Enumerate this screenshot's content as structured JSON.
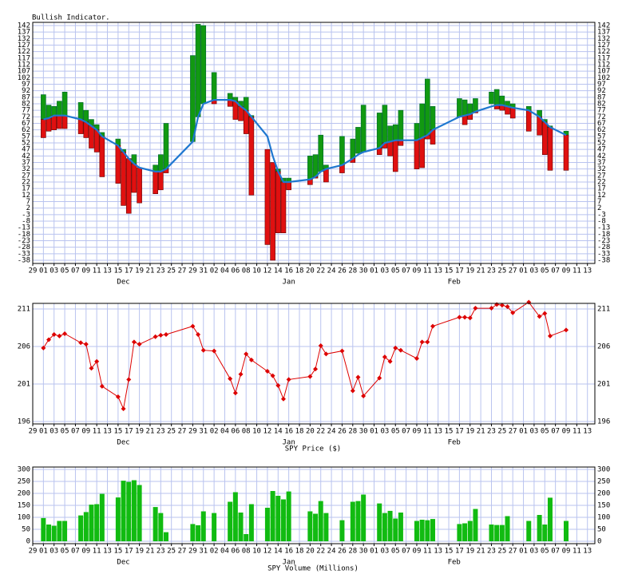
{
  "chart_data": [
    {
      "type": "range-bar",
      "title": "Bullish Indicator.",
      "x": [
        "Dec 01",
        "Dec 02",
        "Dec 03",
        "Dec 04",
        "Dec 05",
        "Dec 08",
        "Dec 09",
        "Dec 10",
        "Dec 11",
        "Dec 12",
        "Dec 15",
        "Dec 16",
        "Dec 17",
        "Dec 18",
        "Dec 19",
        "Dec 22",
        "Dec 23",
        "Dec 24",
        "Dec 29",
        "Dec 30",
        "Dec 31",
        "Jan 02",
        "Jan 05",
        "Jan 06",
        "Jan 07",
        "Jan 08",
        "Jan 09",
        "Jan 12",
        "Jan 13",
        "Jan 14",
        "Jan 15",
        "Jan 16",
        "Jan 20",
        "Jan 21",
        "Jan 22",
        "Jan 23",
        "Jan 26",
        "Jan 28",
        "Jan 29",
        "Jan 30",
        "Feb 02",
        "Feb 03",
        "Feb 04",
        "Feb 05",
        "Feb 06",
        "Feb 09",
        "Feb 10",
        "Feb 11",
        "Feb 12",
        "Feb 17",
        "Feb 18",
        "Feb 19",
        "Feb 20",
        "Feb 23",
        "Feb 24",
        "Feb 25",
        "Feb 26",
        "Feb 27",
        "Mar 02",
        "Mar 04",
        "Mar 05",
        "Mar 06",
        "Mar 09"
      ],
      "high": [
        89,
        81,
        80,
        84,
        91,
        83,
        77,
        70,
        66,
        60,
        55,
        47,
        40,
        43,
        33,
        35,
        43,
        67,
        119,
        143,
        142,
        106,
        90,
        87,
        84,
        87,
        73,
        47,
        37,
        32,
        25,
        25,
        42,
        43,
        58,
        35,
        57,
        55,
        64,
        81,
        75,
        81,
        65,
        66,
        77,
        67,
        82,
        101,
        80,
        86,
        85,
        82,
        86,
        91,
        93,
        88,
        84,
        82,
        80,
        77,
        70,
        65,
        61
      ],
      "low": [
        56,
        61,
        62,
        63,
        63,
        59,
        56,
        48,
        45,
        26,
        21,
        4,
        -2,
        14,
        6,
        13,
        16,
        29,
        53,
        72,
        82,
        82,
        80,
        70,
        69,
        59,
        12,
        -26,
        -38,
        -17,
        -17,
        16,
        20,
        25,
        30,
        22,
        29,
        37,
        44,
        45,
        43,
        48,
        42,
        30,
        50,
        32,
        33,
        55,
        51,
        72,
        66,
        70,
        75,
        82,
        78,
        77,
        74,
        71,
        61,
        58,
        43,
        31,
        31
      ],
      "line": [
        70,
        71,
        73,
        73,
        73,
        70,
        68,
        65,
        62,
        57,
        50,
        45,
        40,
        36,
        33,
        30,
        30,
        32,
        53,
        72,
        82,
        85,
        85,
        84,
        80,
        77,
        72,
        57,
        42,
        30,
        22,
        22,
        24,
        26,
        30,
        32,
        35,
        40,
        43,
        45,
        48,
        52,
        53,
        54,
        54,
        54,
        56,
        58,
        62,
        72,
        73,
        74,
        76,
        80,
        81,
        81,
        80,
        79,
        77,
        72,
        68,
        64,
        58
      ],
      "up_color": "#119911",
      "down_color": "#e01010",
      "line_color": "#1f78d0",
      "ylim": [
        -38,
        142
      ],
      "yticks": [
        142,
        137,
        132,
        127,
        122,
        117,
        112,
        107,
        102,
        97,
        92,
        87,
        82,
        77,
        72,
        67,
        62,
        57,
        52,
        47,
        42,
        37,
        32,
        27,
        22,
        17,
        12,
        7,
        2,
        -3,
        -8,
        -13,
        -18,
        -23,
        -28,
        -33,
        -38
      ],
      "xticks": [
        "29",
        "01",
        "03",
        "05",
        "07",
        "09",
        "11",
        "13",
        "15",
        "17",
        "19",
        "21",
        "23",
        "25",
        "27",
        "29",
        "31",
        "02",
        "04",
        "06",
        "08",
        "10",
        "12",
        "14",
        "16",
        "18",
        "20",
        "22",
        "24",
        "26",
        "28",
        "30",
        "01",
        "03",
        "05",
        "07",
        "09",
        "11",
        "13",
        "15",
        "17",
        "19",
        "21",
        "23",
        "25",
        "27",
        "01",
        "03",
        "05",
        "07",
        "09",
        "11",
        "13"
      ],
      "months": [
        "Dec",
        "Jan",
        "Feb"
      ],
      "grid": true
    },
    {
      "type": "line",
      "xlabel": "SPY Price ($)",
      "x": [
        "Dec 01",
        "Dec 02",
        "Dec 03",
        "Dec 04",
        "Dec 05",
        "Dec 08",
        "Dec 09",
        "Dec 10",
        "Dec 11",
        "Dec 12",
        "Dec 15",
        "Dec 16",
        "Dec 17",
        "Dec 18",
        "Dec 19",
        "Dec 22",
        "Dec 23",
        "Dec 24",
        "Dec 29",
        "Dec 30",
        "Dec 31",
        "Jan 02",
        "Jan 05",
        "Jan 06",
        "Jan 07",
        "Jan 08",
        "Jan 09",
        "Jan 12",
        "Jan 13",
        "Jan 14",
        "Jan 15",
        "Jan 16",
        "Jan 20",
        "Jan 21",
        "Jan 22",
        "Jan 23",
        "Jan 26",
        "Jan 28",
        "Jan 29",
        "Jan 30",
        "Feb 02",
        "Feb 03",
        "Feb 04",
        "Feb 05",
        "Feb 06",
        "Feb 09",
        "Feb 10",
        "Feb 11",
        "Feb 12",
        "Feb 17",
        "Feb 18",
        "Feb 19",
        "Feb 20",
        "Feb 23",
        "Feb 24",
        "Feb 25",
        "Feb 26",
        "Feb 27",
        "Mar 02",
        "Mar 04",
        "Mar 05",
        "Mar 06",
        "Mar 09"
      ],
      "values": [
        205.8,
        206.9,
        207.6,
        207.4,
        207.7,
        206.5,
        206.3,
        203.1,
        204.0,
        200.7,
        199.3,
        197.7,
        201.6,
        206.6,
        206.3,
        207.3,
        207.5,
        207.6,
        208.7,
        207.6,
        205.5,
        205.4,
        201.7,
        199.8,
        202.3,
        205.0,
        204.2,
        202.7,
        202.1,
        200.8,
        199.0,
        201.6,
        202.0,
        203.0,
        206.1,
        205.0,
        205.4,
        200.1,
        201.9,
        199.4,
        201.8,
        204.6,
        204.0,
        205.8,
        205.5,
        204.4,
        206.6,
        206.6,
        208.7,
        209.9,
        209.9,
        209.8,
        211.1,
        211.1,
        211.6,
        211.5,
        211.3,
        210.5,
        211.9,
        210.0,
        210.4,
        207.4,
        208.2
      ],
      "color": "#dd0000",
      "ylim": [
        196,
        211
      ],
      "yticks": [
        211,
        206,
        201,
        196
      ],
      "xticks": [
        "29",
        "01",
        "03",
        "05",
        "07",
        "09",
        "11",
        "13",
        "15",
        "17",
        "19",
        "21",
        "23",
        "25",
        "27",
        "29",
        "31",
        "02",
        "04",
        "06",
        "08",
        "10",
        "12",
        "14",
        "16",
        "18",
        "20",
        "22",
        "24",
        "26",
        "28",
        "30",
        "01",
        "03",
        "05",
        "07",
        "09",
        "11",
        "13",
        "15",
        "17",
        "19",
        "21",
        "23",
        "25",
        "27",
        "01",
        "03",
        "05",
        "07",
        "09",
        "11",
        "13"
      ],
      "months": [
        "Dec",
        "Jan",
        "Feb"
      ],
      "grid": true
    },
    {
      "type": "bar",
      "xlabel": "SPY Volume (Millions)",
      "x": [
        "Dec 01",
        "Dec 02",
        "Dec 03",
        "Dec 04",
        "Dec 05",
        "Dec 08",
        "Dec 09",
        "Dec 10",
        "Dec 11",
        "Dec 12",
        "Dec 15",
        "Dec 16",
        "Dec 17",
        "Dec 18",
        "Dec 19",
        "Dec 22",
        "Dec 23",
        "Dec 24",
        "Dec 29",
        "Dec 30",
        "Dec 31",
        "Jan 02",
        "Jan 05",
        "Jan 06",
        "Jan 07",
        "Jan 08",
        "Jan 09",
        "Jan 12",
        "Jan 13",
        "Jan 14",
        "Jan 15",
        "Jan 16",
        "Jan 20",
        "Jan 21",
        "Jan 22",
        "Jan 23",
        "Jan 26",
        "Jan 28",
        "Jan 29",
        "Jan 30",
        "Feb 02",
        "Feb 03",
        "Feb 04",
        "Feb 05",
        "Feb 06",
        "Feb 09",
        "Feb 10",
        "Feb 11",
        "Feb 12",
        "Feb 17",
        "Feb 18",
        "Feb 19",
        "Feb 20",
        "Feb 23",
        "Feb 24",
        "Feb 25",
        "Feb 26",
        "Feb 27",
        "Mar 02",
        "Mar 04",
        "Mar 05",
        "Mar 06",
        "Mar 09"
      ],
      "values": [
        97,
        70,
        65,
        85,
        85,
        108,
        122,
        153,
        155,
        198,
        183,
        253,
        248,
        255,
        235,
        143,
        118,
        38,
        72,
        67,
        125,
        118,
        165,
        205,
        120,
        30,
        155,
        140,
        210,
        190,
        175,
        208,
        125,
        115,
        168,
        118,
        88,
        165,
        168,
        195,
        158,
        118,
        127,
        95,
        120,
        85,
        90,
        88,
        93,
        72,
        75,
        85,
        135,
        70,
        68,
        68,
        105,
        null,
        85,
        110,
        70,
        182,
        85
      ],
      "color": "#11bb11",
      "ylim": [
        0,
        300
      ],
      "yticks": [
        300,
        250,
        200,
        150,
        100,
        50,
        0
      ],
      "xticks": [
        "29",
        "01",
        "03",
        "05",
        "07",
        "09",
        "11",
        "13",
        "15",
        "17",
        "19",
        "21",
        "23",
        "25",
        "27",
        "29",
        "31",
        "02",
        "04",
        "06",
        "08",
        "10",
        "12",
        "14",
        "16",
        "18",
        "20",
        "22",
        "24",
        "26",
        "28",
        "30",
        "01",
        "03",
        "05",
        "07",
        "09",
        "11",
        "13",
        "15",
        "17",
        "19",
        "21",
        "23",
        "25",
        "27",
        "01",
        "03",
        "05",
        "07",
        "09",
        "11",
        "13"
      ],
      "months": [
        "Dec",
        "Jan",
        "Feb"
      ],
      "grid": true
    }
  ]
}
